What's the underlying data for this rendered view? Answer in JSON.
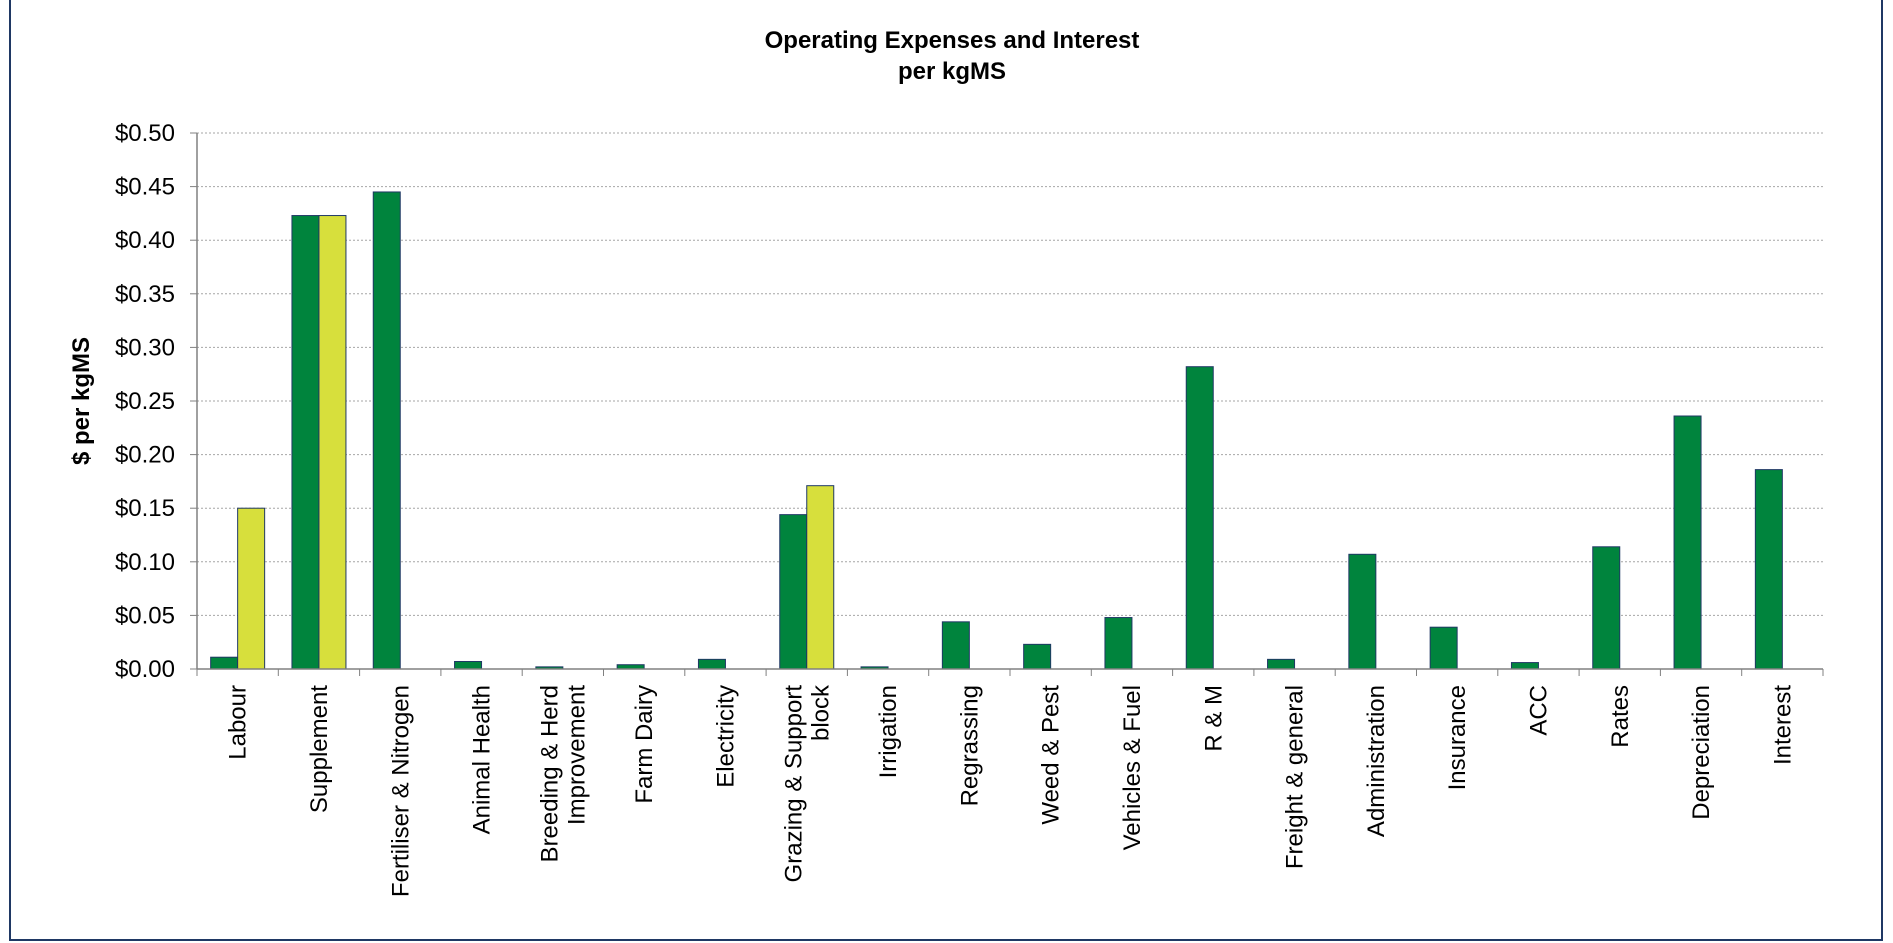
{
  "chart_data": {
    "type": "bar",
    "title": "Operating Expenses and Interest",
    "subtitle": "per kgMS",
    "xlabel": "",
    "ylabel": "$ per kgMS",
    "ylim": [
      0,
      0.5
    ],
    "yticks": [
      "$0.00",
      "$0.05",
      "$0.10",
      "$0.15",
      "$0.20",
      "$0.25",
      "$0.30",
      "$0.35",
      "$0.40",
      "$0.45",
      "$0.50"
    ],
    "grid": true,
    "legend": "none",
    "categories": [
      [
        "Labour"
      ],
      [
        "Supplement"
      ],
      [
        "Fertiliser & Nitrogen"
      ],
      [
        "Animal Health"
      ],
      [
        "Breeding & Herd",
        "Improvement"
      ],
      [
        "Farm Dairy"
      ],
      [
        "Electricity"
      ],
      [
        "Grazing & Support",
        "block"
      ],
      [
        "Irrigation"
      ],
      [
        "Regrassing"
      ],
      [
        "Weed & Pest"
      ],
      [
        "Vehicles & Fuel"
      ],
      [
        "R & M"
      ],
      [
        "Freight & general"
      ],
      [
        "Administration"
      ],
      [
        "Insurance"
      ],
      [
        "ACC"
      ],
      [
        "Rates"
      ],
      [
        "Depreciation"
      ],
      [
        "Interest"
      ]
    ],
    "series": [
      {
        "color": "#00843D",
        "values": [
          0.011,
          0.423,
          0.445,
          0.007,
          0.002,
          0.004,
          0.009,
          0.144,
          0.002,
          0.044,
          0.023,
          0.048,
          0.282,
          0.009,
          0.107,
          0.039,
          0.006,
          0.114,
          0.236,
          0.186
        ]
      },
      {
        "color": "#D7DF3C",
        "values": [
          0.15,
          0.423,
          0,
          0,
          0,
          0,
          0,
          0.171,
          0,
          0,
          0,
          0,
          0,
          0,
          0,
          0,
          0,
          0,
          0,
          0
        ]
      }
    ],
    "colors": {
      "bar_stroke": "#1F3864",
      "grid": "#A6A6A6",
      "axis": "#808080",
      "frame": "#1F3864"
    }
  }
}
